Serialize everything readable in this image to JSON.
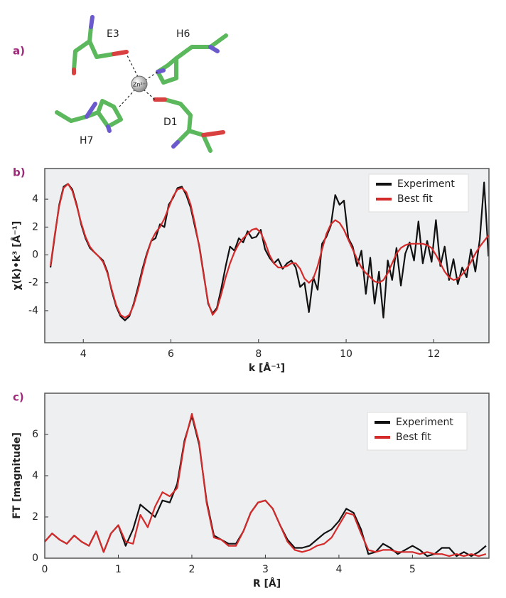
{
  "structure": {
    "panel": "a)",
    "labels": [
      "E3",
      "H6",
      "Zn²⁺",
      "D1",
      "H7"
    ]
  },
  "chart_data": [
    {
      "type": "line",
      "panel": "b)",
      "xlabel": "k [Å⁻¹]",
      "ylabel": "χ(k)•k³ [Å⁻¹]",
      "xlim": [
        3.12,
        13.26
      ],
      "ylim": [
        -6.3,
        6.2
      ],
      "xticks": [
        4,
        6,
        8,
        10,
        12
      ],
      "yticks": [
        -4,
        -2,
        0,
        2,
        4
      ],
      "legend": "upper right",
      "x": [
        3.25,
        3.35,
        3.45,
        3.55,
        3.65,
        3.75,
        3.85,
        3.95,
        4.05,
        4.15,
        4.25,
        4.35,
        4.45,
        4.55,
        4.65,
        4.75,
        4.85,
        4.95,
        5.05,
        5.15,
        5.25,
        5.35,
        5.45,
        5.55,
        5.65,
        5.75,
        5.85,
        5.95,
        6.05,
        6.15,
        6.25,
        6.35,
        6.45,
        6.55,
        6.65,
        6.75,
        6.85,
        6.95,
        7.05,
        7.15,
        7.25,
        7.35,
        7.45,
        7.55,
        7.65,
        7.75,
        7.85,
        7.95,
        8.05,
        8.15,
        8.25,
        8.35,
        8.45,
        8.55,
        8.65,
        8.75,
        8.85,
        8.95,
        9.05,
        9.15,
        9.25,
        9.35,
        9.45,
        9.55,
        9.65,
        9.75,
        9.85,
        9.95,
        10.05,
        10.15,
        10.25,
        10.35,
        10.45,
        10.55,
        10.65,
        10.75,
        10.85,
        10.95,
        11.05,
        11.15,
        11.25,
        11.35,
        11.45,
        11.55,
        11.65,
        11.75,
        11.85,
        11.95,
        12.05,
        12.15,
        12.25,
        12.35,
        12.45,
        12.55,
        12.65,
        12.75,
        12.85,
        12.95,
        13.05,
        13.15,
        13.25
      ],
      "series": [
        {
          "name": "Experiment",
          "color": "#111111",
          "values": [
            -0.9,
            1.4,
            3.6,
            4.9,
            5.1,
            4.7,
            3.6,
            2.2,
            1.2,
            0.5,
            0.2,
            -0.1,
            -0.4,
            -1.2,
            -2.6,
            -3.7,
            -4.4,
            -4.7,
            -4.4,
            -3.5,
            -2.3,
            -1.0,
            0.1,
            1.0,
            1.2,
            2.2,
            2.0,
            3.6,
            4.1,
            4.8,
            4.9,
            4.3,
            3.4,
            2.0,
            0.6,
            -1.4,
            -3.5,
            -4.2,
            -3.8,
            -2.4,
            -0.8,
            0.6,
            0.3,
            1.2,
            0.9,
            1.7,
            1.2,
            1.3,
            1.8,
            0.4,
            -0.2,
            -0.6,
            -0.3,
            -1.0,
            -0.6,
            -0.4,
            -0.9,
            -2.3,
            -2.0,
            -4.1,
            -1.6,
            -2.5,
            0.8,
            1.3,
            2.1,
            4.3,
            3.6,
            3.9,
            1.2,
            0.6,
            -0.8,
            0.3,
            -2.8,
            -0.2,
            -3.5,
            -1.2,
            -4.5,
            -0.4,
            -1.8,
            0.5,
            -2.2,
            0.1,
            0.9,
            -0.4,
            2.4,
            -0.6,
            1.0,
            -0.5,
            2.5,
            -0.8,
            0.6,
            -1.8,
            -0.3,
            -2.1,
            -0.9,
            -1.6,
            0.4,
            -1.2,
            1.1,
            5.2,
            -0.1
          ]
        },
        {
          "name": "Best fit",
          "color": "#d42a2a",
          "values": [
            -0.8,
            1.5,
            3.5,
            4.8,
            5.1,
            4.6,
            3.5,
            2.3,
            1.3,
            0.6,
            0.2,
            -0.1,
            -0.5,
            -1.3,
            -2.5,
            -3.6,
            -4.3,
            -4.5,
            -4.3,
            -3.6,
            -2.5,
            -1.2,
            0,
            1.0,
            1.6,
            2.0,
            2.6,
            3.4,
            4.2,
            4.7,
            4.8,
            4.5,
            3.6,
            2.2,
            0.5,
            -1.5,
            -3.4,
            -4.3,
            -3.9,
            -2.8,
            -1.6,
            -0.6,
            0.2,
            0.8,
            1.2,
            1.5,
            1.8,
            1.9,
            1.6,
            0.9,
            0.0,
            -0.6,
            -0.9,
            -0.9,
            -0.8,
            -0.6,
            -0.6,
            -1.0,
            -1.7,
            -2.0,
            -1.7,
            -0.8,
            0.4,
            1.5,
            2.2,
            2.5,
            2.3,
            1.8,
            1.1,
            0.4,
            -0.3,
            -0.9,
            -1.3,
            -1.6,
            -1.9,
            -2.0,
            -1.8,
            -1.3,
            -0.6,
            0.1,
            0.5,
            0.7,
            0.8,
            0.8,
            0.8,
            0.8,
            0.7,
            0.5,
            0.0,
            -0.6,
            -1.2,
            -1.6,
            -1.8,
            -1.7,
            -1.4,
            -1.0,
            -0.5,
            0.1,
            0.6,
            1.0,
            1.4
          ]
        }
      ]
    },
    {
      "type": "line",
      "panel": "c)",
      "xlabel": "R [Å]",
      "ylabel": "FT [magnitude]",
      "xlim": [
        0,
        6.04
      ],
      "ylim": [
        0,
        8.0
      ],
      "xticks": [
        0,
        1,
        2,
        3,
        4,
        5
      ],
      "yticks": [
        0,
        2,
        4,
        6
      ],
      "legend": "upper right",
      "x": [
        0,
        0.1,
        0.2,
        0.3,
        0.4,
        0.5,
        0.6,
        0.7,
        0.8,
        0.9,
        1.0,
        1.1,
        1.2,
        1.3,
        1.4,
        1.5,
        1.6,
        1.7,
        1.8,
        1.9,
        2.0,
        2.1,
        2.2,
        2.3,
        2.4,
        2.5,
        2.6,
        2.7,
        2.8,
        2.9,
        3.0,
        3.1,
        3.2,
        3.3,
        3.4,
        3.5,
        3.6,
        3.7,
        3.8,
        3.9,
        4.0,
        4.1,
        4.2,
        4.3,
        4.4,
        4.5,
        4.6,
        4.7,
        4.8,
        4.9,
        5.0,
        5.1,
        5.2,
        5.3,
        5.4,
        5.5,
        5.6,
        5.7,
        5.8,
        5.9,
        6.0
      ],
      "series": [
        {
          "name": "Experiment",
          "color": "#111111",
          "values": [
            0.8,
            1.2,
            0.9,
            0.7,
            1.1,
            0.8,
            0.6,
            1.3,
            0.3,
            1.2,
            1.6,
            0.6,
            1.4,
            2.6,
            2.3,
            2.0,
            2.8,
            2.7,
            3.6,
            5.7,
            6.9,
            5.5,
            2.8,
            1.1,
            0.9,
            0.7,
            0.7,
            1.3,
            2.2,
            2.7,
            2.8,
            2.4,
            1.6,
            0.9,
            0.5,
            0.5,
            0.6,
            0.9,
            1.2,
            1.4,
            1.8,
            2.4,
            2.2,
            1.4,
            0.2,
            0.3,
            0.7,
            0.5,
            0.2,
            0.4,
            0.6,
            0.4,
            0.1,
            0.2,
            0.5,
            0.5,
            0.1,
            0.3,
            0.1,
            0.3,
            0.6
          ]
        },
        {
          "name": "Best fit",
          "color": "#d42a2a",
          "values": [
            0.8,
            1.2,
            0.9,
            0.7,
            1.1,
            0.8,
            0.6,
            1.3,
            0.3,
            1.2,
            1.6,
            0.8,
            0.7,
            2.1,
            1.5,
            2.5,
            3.2,
            3.0,
            3.4,
            5.6,
            7.0,
            5.6,
            2.7,
            1.0,
            0.9,
            0.6,
            0.6,
            1.3,
            2.2,
            2.7,
            2.8,
            2.4,
            1.6,
            0.8,
            0.4,
            0.3,
            0.4,
            0.6,
            0.7,
            1.0,
            1.6,
            2.2,
            2.1,
            1.2,
            0.4,
            0.3,
            0.4,
            0.4,
            0.3,
            0.3,
            0.3,
            0.2,
            0.3,
            0.2,
            0.2,
            0.1,
            0.2,
            0.1,
            0.2,
            0.1,
            0.2
          ]
        }
      ]
    }
  ]
}
